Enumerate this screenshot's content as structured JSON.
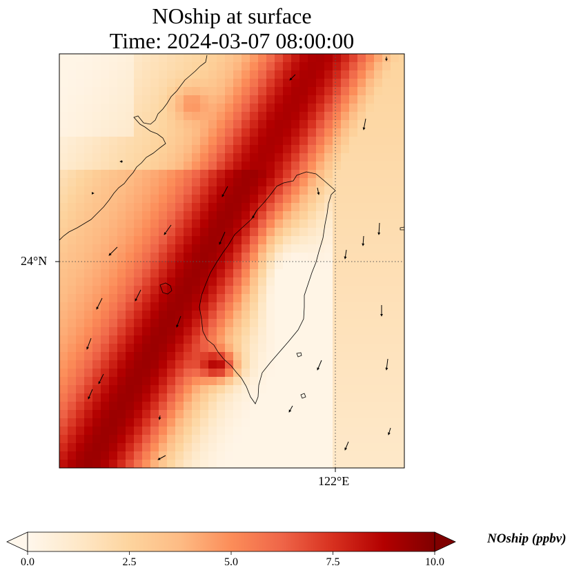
{
  "title": {
    "line1": "NOship at surface",
    "line2": "Time: 2024-03-07 08:00:00"
  },
  "map": {
    "lat_label": "24°N",
    "lon_label": "122°E",
    "gridlines": "dotted",
    "region": "Taiwan Strait",
    "field": "NOship surface concentration",
    "vectors": "wind arrows"
  },
  "colorbar": {
    "label": "NOship (ppbv)",
    "colormap": "OrRd",
    "min": 0.0,
    "max": 10.0,
    "extend": "both",
    "ticks": [
      "0.0",
      "2.5",
      "5.0",
      "7.5",
      "10.0"
    ],
    "stops": [
      "#fff7ec",
      "#fee8c8",
      "#fdd49e",
      "#fdbb84",
      "#fc8d59",
      "#ef6548",
      "#d7301f",
      "#b30000",
      "#7f0000"
    ]
  }
}
